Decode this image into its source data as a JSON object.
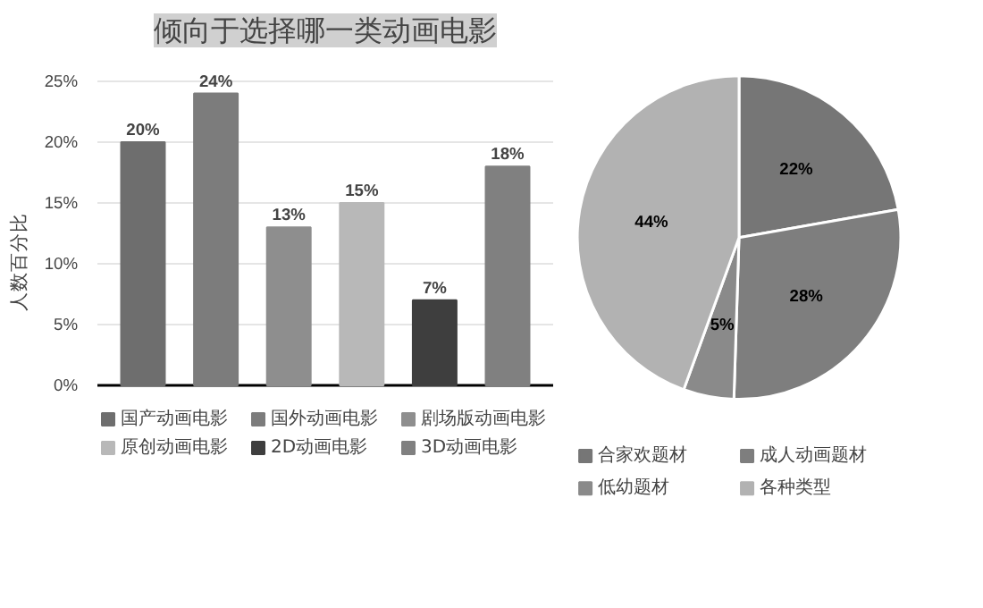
{
  "chart_data": [
    {
      "type": "bar",
      "title": "倾向于选择哪一类动画电影",
      "ylabel": "人数百分比",
      "categories": [
        null
      ],
      "series": [
        {
          "name": "国产动画电影",
          "color": "#6e6e6e",
          "values": [
            20
          ],
          "value_labels": [
            "20%"
          ]
        },
        {
          "name": "国外动画电影",
          "color": "#7c7c7c",
          "values": [
            24
          ],
          "value_labels": [
            "24%"
          ]
        },
        {
          "name": "剧场版动画电影",
          "color": "#8e8e8e",
          "values": [
            13
          ],
          "value_labels": [
            "13%"
          ]
        },
        {
          "name": "原创动画电影",
          "color": "#b8b8b8",
          "values": [
            15
          ],
          "value_labels": [
            "15%"
          ]
        },
        {
          "name": "2D动画电影",
          "color": "#3e3e3e",
          "values": [
            7
          ],
          "value_labels": [
            "7%"
          ]
        },
        {
          "name": "3D动画电影",
          "color": "#808080",
          "values": [
            18
          ],
          "value_labels": [
            "18%"
          ]
        }
      ],
      "ylim": [
        0,
        25
      ],
      "yticks": [
        {
          "value": 0,
          "label": "0%"
        },
        {
          "value": 5,
          "label": "5%"
        },
        {
          "value": 10,
          "label": "10%"
        },
        {
          "value": 15,
          "label": "15%"
        },
        {
          "value": 20,
          "label": "20%"
        },
        {
          "value": 25,
          "label": "25%"
        }
      ],
      "tick_labels": "y",
      "grid": "y",
      "legend": "bottom"
    },
    {
      "type": "pie",
      "categories": [
        "合家欢题材",
        "成人动画题材",
        "低幼题材",
        "各种类型"
      ],
      "values": [
        22,
        28,
        5,
        44
      ],
      "colors": [
        "#767676",
        "#7e7e7e",
        "#8a8a8a",
        "#b2b2b2"
      ],
      "value_labels": [
        "22%",
        "28%",
        "5%",
        "44%"
      ],
      "data_labels": true,
      "legend": "bottom"
    }
  ]
}
